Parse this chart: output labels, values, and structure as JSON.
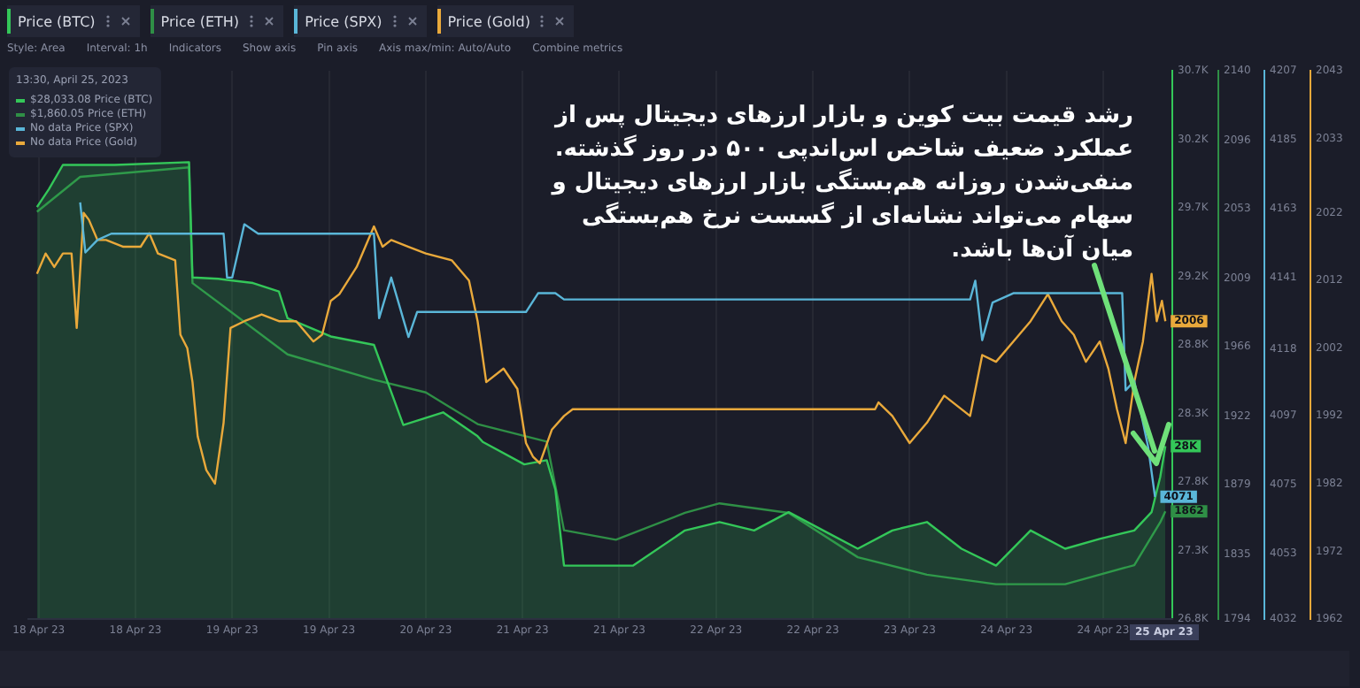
{
  "chart_data": [
    {
      "type": "line",
      "annotations": [
        "Style: Area",
        "Interval: 1h",
        "Indicators",
        "Show axis",
        "Pin axis",
        "Axis max/min: Auto/Auto",
        "Combine metrics",
        "13:30, April 25, 2023",
        "$28,033.08 Price (BTC)",
        "$1,860.05 Price (ETH)",
        "No data Price (SPX)",
        "No data Price (Gold)",
        "رشد قیمت بیت کوین و بازار ارزهای دیجیتال پس از\nعملکرد ضعیف شاخص اس‌اندپی ۵۰۰ در روز گذشته.\nمنفی‌شدن روزانه هم‌بستگی بازار ارزهای دیجیتال و\nسهام می‌تواند نشانه‌ای از گسست نرخ هم‌بستگی\nمیان آن‌ها باشد.",
        "25 Apr 23"
      ],
      "xlim": [
        "2023-04-18T03:30",
        "2023-04-25T01:00"
      ],
      "xticks": [
        {
          "value": "2023-04-18T05:00",
          "label": "18 Apr 23"
        },
        {
          "value": "2023-04-18T19:00",
          "label": "18 Apr 23"
        },
        {
          "value": "2023-04-19T09:00",
          "label": "19 Apr 23"
        },
        {
          "value": "2023-04-19T23:00",
          "label": "19 Apr 23"
        },
        {
          "value": "2023-04-20T13:00",
          "label": "20 Apr 23"
        },
        {
          "value": "2023-04-21T03:00",
          "label": "21 Apr 23"
        },
        {
          "value": "2023-04-21T17:00",
          "label": "21 Apr 23"
        },
        {
          "value": "2023-04-22T07:00",
          "label": "22 Apr 23"
        },
        {
          "value": "2023-04-22T21:00",
          "label": "22 Apr 23"
        },
        {
          "value": "2023-04-23T11:00",
          "label": "23 Apr 23"
        },
        {
          "value": "2023-04-24T01:00",
          "label": "24 Apr 23"
        },
        {
          "value": "2023-04-24T15:00",
          "label": "24 Apr 23"
        }
      ],
      "ylim": [
        26800,
        30700
      ],
      "yticks": [
        {
          "value": 26800,
          "label": "26.8K"
        },
        {
          "value": 27287.5,
          "label": "27.3K"
        },
        {
          "value": 27775,
          "label": "27.8K"
        },
        {
          "value": 28262.5,
          "label": "28.3K"
        },
        {
          "value": 28750,
          "label": "28.8K"
        },
        {
          "value": 29237.5,
          "label": "29.2K"
        },
        {
          "value": 29725,
          "label": "29.7K"
        },
        {
          "value": 30212.5,
          "label": "30.2K"
        },
        {
          "value": 30700,
          "label": "30.7K"
        }
      ],
      "y2lim": [
        1794,
        2140
      ],
      "y2ticks": [
        1794,
        1835,
        1879,
        1922,
        1966,
        2009,
        2053,
        2096,
        2140
      ],
      "grid": "x",
      "legend": "top left",
      "marker": "none",
      "line_style": "solid",
      "series": [
        {
          "name": "Price (BTC)",
          "type": "area",
          "axis": "y",
          "color": "#34c759",
          "x": [
            "2023-04-18T04:45",
            "2023-04-18T06:30",
            "2023-04-18T08:30",
            "2023-04-18T16:00",
            "2023-04-19T02:45",
            "2023-04-19T03:15",
            "2023-04-19T07:00",
            "2023-04-19T12:00",
            "2023-04-19T15:45",
            "2023-04-19T17:00",
            "2023-04-19T23:15",
            "2023-04-20T05:30",
            "2023-04-20T09:45",
            "2023-04-20T15:30",
            "2023-04-20T20:30",
            "2023-04-20T21:15",
            "2023-04-21T03:15",
            "2023-04-21T06:30",
            "2023-04-21T07:45",
            "2023-04-21T09:00",
            "2023-04-21T14:00",
            "2023-04-21T19:00",
            "2023-04-22T02:30",
            "2023-04-22T07:30",
            "2023-04-22T12:30",
            "2023-04-22T17:30",
            "2023-04-22T22:30",
            "2023-04-23T03:30",
            "2023-04-23T08:30",
            "2023-04-23T13:30",
            "2023-04-23T18:30",
            "2023-04-23T23:30",
            "2023-04-24T04:30",
            "2023-04-24T09:30",
            "2023-04-24T14:30",
            "2023-04-24T19:30",
            "2023-04-24T22:00",
            "2023-04-24T23:15",
            "2023-04-25T00:00"
          ],
          "values": [
            29730,
            29860,
            30030,
            30030,
            30050,
            29230,
            29220,
            29190,
            29130,
            28940,
            28810,
            28750,
            28180,
            28270,
            28100,
            28060,
            27900,
            27930,
            27720,
            27180,
            27180,
            27180,
            27430,
            27490,
            27430,
            27560,
            27430,
            27300,
            27430,
            27490,
            27300,
            27180,
            27430,
            27300,
            27370,
            27430,
            27560,
            27810,
            28030
          ],
          "value_labels": [
            null,
            null,
            null,
            null,
            null,
            null,
            null,
            null,
            null,
            null,
            null,
            null,
            null,
            null,
            null,
            null,
            null,
            null,
            null,
            null,
            null,
            null,
            null,
            null,
            null,
            null,
            null,
            null,
            null,
            null,
            null,
            null,
            null,
            null,
            null,
            null,
            null,
            null,
            "28K"
          ]
        },
        {
          "name": "Price (ETH)",
          "type": "line",
          "axis": "y2",
          "color": "#2f8f46",
          "x": [
            "2023-04-18T04:45",
            "2023-04-18T11:00",
            "2023-04-19T02:45",
            "2023-04-19T03:15",
            "2023-04-19T17:00",
            "2023-04-20T05:30",
            "2023-04-20T13:00",
            "2023-04-20T20:30",
            "2023-04-21T06:30",
            "2023-04-21T09:00",
            "2023-04-21T16:30",
            "2023-04-22T02:30",
            "2023-04-22T07:30",
            "2023-04-22T17:30",
            "2023-04-23T03:30",
            "2023-04-23T13:30",
            "2023-04-23T23:30",
            "2023-04-24T09:30",
            "2023-04-24T19:30",
            "2023-04-24T23:15",
            "2023-04-25T00:00"
          ],
          "values": [
            2051,
            2073,
            2079,
            2006,
            1961,
            1945,
            1937,
            1917,
            1906,
            1850,
            1844,
            1861,
            1867,
            1861,
            1833,
            1822,
            1816,
            1816,
            1828,
            1855,
            1862
          ],
          "value_labels": [
            null,
            null,
            null,
            null,
            null,
            null,
            null,
            null,
            null,
            null,
            null,
            null,
            null,
            null,
            null,
            null,
            null,
            null,
            null,
            null,
            "1862"
          ]
        }
      ]
    },
    {
      "type": "line",
      "tick_labels": "y",
      "legend": "top left",
      "marker": "none",
      "line_style": "solid",
      "xlim": [
        "2023-04-18T03:30",
        "2023-04-25T01:00"
      ],
      "ylim": [
        4032,
        4207
      ],
      "yticks": [
        4032,
        4053,
        4075,
        4097,
        4118,
        4141,
        4163,
        4185,
        4207
      ],
      "y2lim": [
        1962,
        2043
      ],
      "y2ticks": [
        1962,
        1972,
        1982,
        1992,
        2002,
        2012,
        2022,
        2033,
        2043
      ],
      "series": [
        {
          "name": "Price (SPX)",
          "type": "line",
          "axis": "y",
          "color": "#5ab6d8",
          "x": [
            "2023-04-18T11:00",
            "2023-04-18T11:45",
            "2023-04-18T13:30",
            "2023-04-18T15:30",
            "2023-04-19T07:45",
            "2023-04-19T08:15",
            "2023-04-19T09:00",
            "2023-04-19T10:45",
            "2023-04-19T12:45",
            "2023-04-20T05:30",
            "2023-04-20T06:15",
            "2023-04-20T08:00",
            "2023-04-20T10:30",
            "2023-04-20T11:45",
            "2023-04-21T03:30",
            "2023-04-21T05:15",
            "2023-04-21T07:45",
            "2023-04-21T09:00",
            "2023-04-23T19:45",
            "2023-04-23T20:30",
            "2023-04-23T21:30",
            "2023-04-23T23:00",
            "2023-04-24T02:00",
            "2023-04-24T17:45",
            "2023-04-24T18:15",
            "2023-04-24T19:30",
            "2023-04-24T21:30",
            "2023-04-24T22:30"
          ],
          "values": [
            4165,
            4149,
            4153,
            4155,
            4155,
            4141,
            4141,
            4158,
            4155,
            4155,
            4128,
            4141,
            4122,
            4130,
            4130,
            4136,
            4136,
            4134,
            4134,
            4140,
            4121,
            4133,
            4136,
            4136,
            4105,
            4108,
            4087,
            4071
          ],
          "value_labels": [
            null,
            null,
            null,
            null,
            null,
            null,
            null,
            null,
            null,
            null,
            null,
            null,
            null,
            null,
            null,
            null,
            null,
            null,
            null,
            null,
            null,
            null,
            null,
            null,
            null,
            null,
            null,
            "4071"
          ]
        },
        {
          "name": "Price (Gold)",
          "type": "line",
          "axis": "y2",
          "color": "#e9a93b",
          "x": [
            "2023-04-18T04:45",
            "2023-04-18T06:00",
            "2023-04-18T07:15",
            "2023-04-18T08:30",
            "2023-04-18T09:45",
            "2023-04-18T10:30",
            "2023-04-18T11:30",
            "2023-04-18T12:15",
            "2023-04-18T13:30",
            "2023-04-18T14:45",
            "2023-04-18T17:15",
            "2023-04-18T19:45",
            "2023-04-18T21:00",
            "2023-04-18T22:15",
            "2023-04-19T00:45",
            "2023-04-19T01:30",
            "2023-04-19T02:30",
            "2023-04-19T03:15",
            "2023-04-19T04:00",
            "2023-04-19T05:15",
            "2023-04-19T06:30",
            "2023-04-19T07:45",
            "2023-04-19T08:45",
            "2023-04-19T10:45",
            "2023-04-19T13:15",
            "2023-04-19T15:45",
            "2023-04-19T18:15",
            "2023-04-19T20:45",
            "2023-04-19T22:00",
            "2023-04-19T23:15",
            "2023-04-20T00:30",
            "2023-04-20T03:00",
            "2023-04-20T05:30",
            "2023-04-20T06:45",
            "2023-04-20T08:00",
            "2023-04-20T10:30",
            "2023-04-20T13:00",
            "2023-04-20T16:45",
            "2023-04-20T19:15",
            "2023-04-20T20:30",
            "2023-04-20T21:45",
            "2023-04-21T00:15",
            "2023-04-21T02:15",
            "2023-04-21T03:30",
            "2023-04-21T04:30",
            "2023-04-21T05:30",
            "2023-04-21T07:15",
            "2023-04-21T09:00",
            "2023-04-21T10:15",
            "2023-04-23T06:00",
            "2023-04-23T06:30",
            "2023-04-23T08:30",
            "2023-04-23T11:00",
            "2023-04-23T13:30",
            "2023-04-23T16:00",
            "2023-04-23T19:45",
            "2023-04-23T21:30",
            "2023-04-23T23:30",
            "2023-04-24T02:00",
            "2023-04-24T04:30",
            "2023-04-24T07:00",
            "2023-04-24T09:00",
            "2023-04-24T10:45",
            "2023-04-24T12:30",
            "2023-04-24T14:30",
            "2023-04-24T15:45",
            "2023-04-24T17:00",
            "2023-04-24T18:15",
            "2023-04-24T19:30",
            "2023-04-24T20:45",
            "2023-04-24T22:00",
            "2023-04-24T22:45",
            "2023-04-24T23:30",
            "2023-04-25T00:00"
          ],
          "values": [
            2013,
            2016,
            2014,
            2016,
            2016,
            2005,
            2022,
            2021,
            2018,
            2018,
            2017,
            2017,
            2019,
            2016,
            2015,
            2004,
            2002,
            1997,
            1989,
            1984,
            1982,
            1991,
            2005,
            2006,
            2007,
            2006,
            2006,
            2003,
            2004,
            2009,
            2010,
            2014,
            2020,
            2017,
            2018,
            2017,
            2016,
            2015,
            2012,
            2006,
            1997,
            1999,
            1996,
            1988,
            1986,
            1985,
            1990,
            1992,
            1993,
            1993,
            1994,
            1992,
            1988,
            1991,
            1995,
            1992,
            2001,
            2000,
            2003,
            2006,
            2010,
            2006,
            2004,
            2000,
            2003,
            1999,
            1993,
            1988,
            1997,
            2003,
            2013,
            2006,
            2009,
            2006
          ],
          "value_labels": [
            null,
            null,
            null,
            null,
            null,
            null,
            null,
            null,
            null,
            null,
            null,
            null,
            null,
            null,
            null,
            null,
            null,
            null,
            null,
            null,
            null,
            null,
            null,
            null,
            null,
            null,
            null,
            null,
            null,
            null,
            null,
            null,
            null,
            null,
            null,
            null,
            null,
            null,
            null,
            null,
            null,
            null,
            null,
            null,
            null,
            null,
            null,
            null,
            null,
            null,
            null,
            null,
            null,
            null,
            null,
            null,
            null,
            null,
            null,
            null,
            null,
            null,
            null,
            null,
            null,
            null,
            null,
            null,
            null,
            null,
            null,
            null,
            null,
            "2006"
          ]
        }
      ]
    }
  ]
}
